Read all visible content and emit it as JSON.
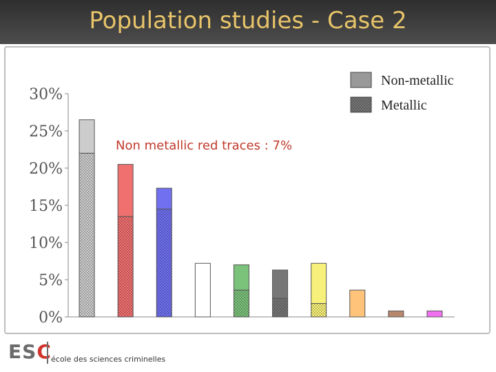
{
  "slide": {
    "title": "Population studies - Case 2"
  },
  "footer": {
    "logo_text": "ESC",
    "logo_letters": [
      "E",
      "S",
      "C"
    ],
    "subtitle": "école des sciences criminelles"
  },
  "colors": {
    "title_bar": "#3a3a3a",
    "title_text": "#e8c46a",
    "annotation": "#c0392b",
    "logo_red": "#d0342c",
    "logo_grey": "#6b6b6b"
  },
  "chart_data": {
    "type": "bar",
    "stacked": true,
    "y_tick_labels": [
      "0%",
      "5%",
      "10%",
      "15%",
      "20%",
      "25%",
      "30%"
    ],
    "ylim": [
      0,
      30
    ],
    "grid": false,
    "legend_position": "top-right",
    "legend": [
      {
        "label": "Non-metallic",
        "pattern": "solid",
        "color": "#999999"
      },
      {
        "label": "Metallic",
        "pattern": "stippled",
        "color": "#777777"
      }
    ],
    "annotation": "Non metallic red traces : 7%",
    "bars": [
      {
        "color": "#cccccc",
        "metallic": 22.0,
        "non_metallic": 4.5
      },
      {
        "color": "#f07070",
        "metallic": 13.5,
        "non_metallic": 7.0
      },
      {
        "color": "#7070f0",
        "metallic": 14.5,
        "non_metallic": 2.8
      },
      {
        "color": "#ffffff",
        "metallic": 0.0,
        "non_metallic": 7.2
      },
      {
        "color": "#7bc27b",
        "metallic": 3.6,
        "non_metallic": 3.4
      },
      {
        "color": "#777777",
        "metallic": 2.5,
        "non_metallic": 3.8
      },
      {
        "color": "#f7f07a",
        "metallic": 1.8,
        "non_metallic": 5.4
      },
      {
        "color": "#ffc47a",
        "metallic": 0.0,
        "non_metallic": 3.6
      },
      {
        "color": "#b9876c",
        "metallic": 0.0,
        "non_metallic": 0.8
      },
      {
        "color": "#f070f0",
        "metallic": 0.0,
        "non_metallic": 0.8
      }
    ]
  }
}
